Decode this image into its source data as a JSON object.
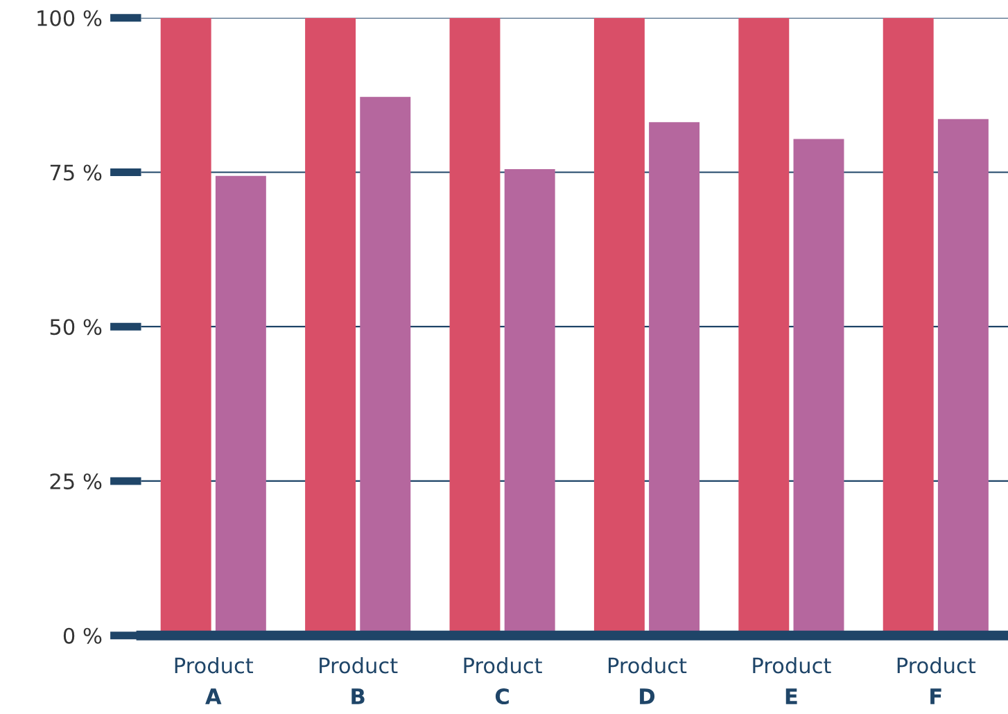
{
  "chart_data": {
    "type": "bar",
    "categories": [
      "Product A",
      "Product B",
      "Product C",
      "Product D",
      "Product E",
      "Product F"
    ],
    "series": [
      {
        "color": "#d94f68",
        "values": [
          100,
          100,
          100,
          100,
          100,
          100
        ]
      },
      {
        "color": "#b5679e",
        "values": [
          74.4,
          87.2,
          75.5,
          83.1,
          80.4,
          83.6
        ]
      }
    ],
    "ylim": [
      0,
      100
    ],
    "yticks": [
      {
        "value": 0,
        "label": "0 %"
      },
      {
        "value": 25,
        "label": "25 %"
      },
      {
        "value": 50,
        "label": "50 %"
      },
      {
        "value": 75,
        "label": "75 %"
      },
      {
        "value": 100,
        "label": "100 %"
      }
    ],
    "grid": "y",
    "legend": false
  }
}
